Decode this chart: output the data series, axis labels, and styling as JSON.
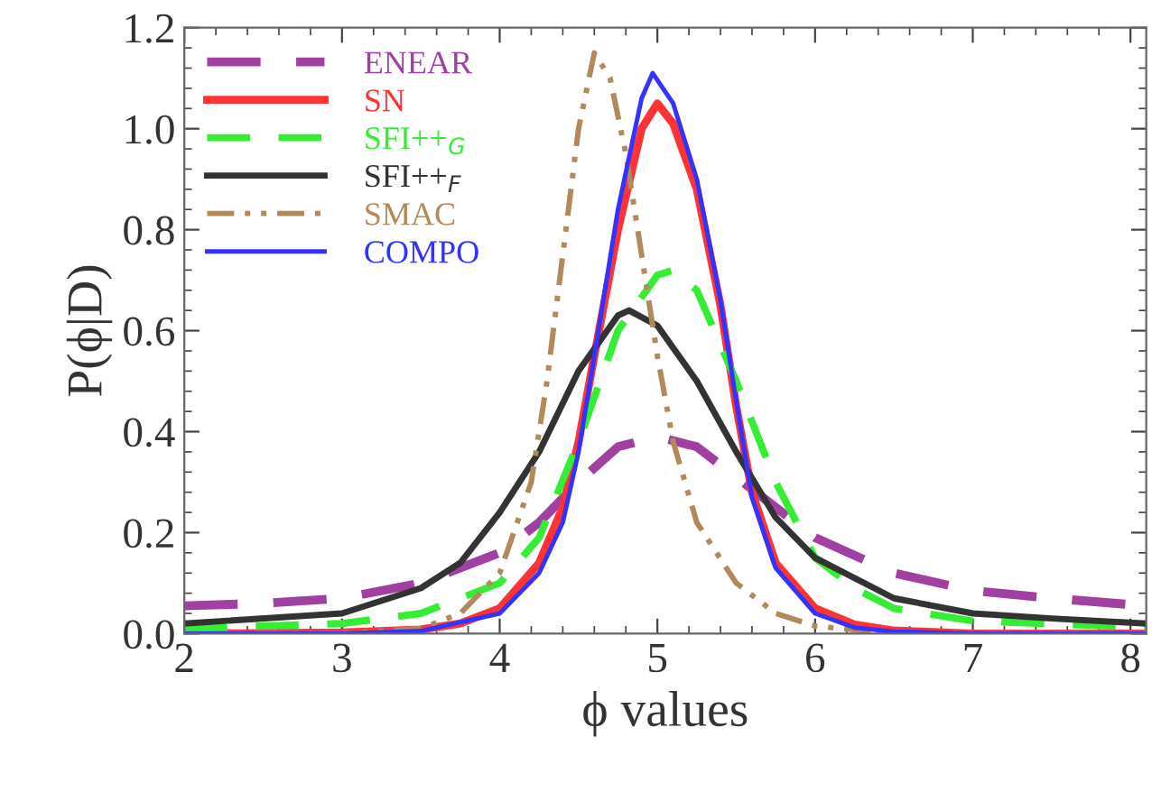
{
  "chart_data": {
    "type": "line",
    "xlabel": "ϕ values",
    "ylabel": "P(ϕ|D)",
    "xlim": [
      2,
      8.1
    ],
    "ylim": [
      0,
      1.2
    ],
    "xticks": [
      2,
      3,
      4,
      5,
      6,
      7,
      8
    ],
    "yticks": [
      {
        "value": 0,
        "label": "0.0"
      },
      0.2,
      0.4,
      0.6,
      0.8,
      {
        "value": 1,
        "label": "1.0"
      },
      1.2
    ],
    "grid": false,
    "legend": "top left",
    "marker": "none",
    "series": [
      {
        "name": "ENEAR",
        "color": "#a040a0",
        "line_style": "dashed",
        "x": [
          2,
          2.5,
          3,
          3.5,
          4,
          4.25,
          4.5,
          4.75,
          5,
          5.25,
          5.5,
          5.75,
          6,
          6.5,
          7,
          7.5,
          8.1
        ],
        "values": [
          0.055,
          0.06,
          0.07,
          0.1,
          0.16,
          0.22,
          0.3,
          0.37,
          0.39,
          0.37,
          0.31,
          0.25,
          0.19,
          0.12,
          0.085,
          0.07,
          0.055
        ]
      },
      {
        "name": "SN",
        "color": "#ff3333",
        "line_style": "solid",
        "x": [
          2,
          3,
          3.5,
          3.75,
          4,
          4.25,
          4.4,
          4.5,
          4.6,
          4.75,
          4.9,
          5,
          5.1,
          5.25,
          5.4,
          5.5,
          5.6,
          5.75,
          6,
          6.25,
          6.5,
          7,
          8.1
        ],
        "values": [
          0,
          0.002,
          0.008,
          0.02,
          0.05,
          0.14,
          0.25,
          0.38,
          0.55,
          0.8,
          1.0,
          1.05,
          1.01,
          0.88,
          0.65,
          0.45,
          0.28,
          0.14,
          0.05,
          0.018,
          0.006,
          0,
          0
        ]
      },
      {
        "name": "SFI++$_{G}$",
        "color": "#33ee33",
        "line_style": "dashed",
        "x": [
          2,
          3,
          3.5,
          4,
          4.25,
          4.5,
          4.75,
          5,
          5.1,
          5.25,
          5.5,
          5.75,
          6,
          6.25,
          6.5,
          7,
          8.1
        ],
        "values": [
          0.01,
          0.02,
          0.04,
          0.1,
          0.19,
          0.38,
          0.6,
          0.71,
          0.72,
          0.68,
          0.5,
          0.3,
          0.15,
          0.09,
          0.05,
          0.025,
          0.012
        ]
      },
      {
        "name": "SFI++$_{F}$",
        "color": "#333333",
        "line_style": "solid",
        "x": [
          2,
          3,
          3.5,
          3.75,
          4,
          4.25,
          4.5,
          4.75,
          4.82,
          5,
          5.25,
          5.5,
          5.75,
          6,
          6.5,
          7,
          7.5,
          8.1
        ],
        "values": [
          0.02,
          0.04,
          0.09,
          0.14,
          0.24,
          0.36,
          0.52,
          0.63,
          0.64,
          0.61,
          0.5,
          0.36,
          0.23,
          0.15,
          0.07,
          0.04,
          0.03,
          0.02
        ]
      },
      {
        "name": "SMAC",
        "color": "#b08a5a",
        "line_style": "dashdot",
        "x": [
          2,
          3,
          3.5,
          3.75,
          4,
          4.2,
          4.3,
          4.4,
          4.5,
          4.6,
          4.7,
          4.8,
          4.9,
          5,
          5.1,
          5.25,
          5.5,
          5.75,
          6,
          6.5,
          8.1
        ],
        "values": [
          0,
          0,
          0.01,
          0.04,
          0.12,
          0.3,
          0.5,
          0.75,
          1.0,
          1.15,
          1.1,
          0.95,
          0.75,
          0.55,
          0.38,
          0.22,
          0.1,
          0.04,
          0.015,
          0,
          0
        ]
      },
      {
        "name": "COMPO",
        "color": "#3333ff",
        "line_style": "solid",
        "x": [
          2,
          3,
          3.5,
          4,
          4.25,
          4.4,
          4.5,
          4.6,
          4.75,
          4.9,
          4.97,
          5.1,
          5.25,
          5.4,
          5.5,
          5.6,
          5.75,
          6,
          6.25,
          6.5,
          7,
          8.1
        ],
        "values": [
          0,
          0,
          0.005,
          0.04,
          0.12,
          0.22,
          0.36,
          0.55,
          0.84,
          1.06,
          1.11,
          1.05,
          0.9,
          0.66,
          0.46,
          0.27,
          0.13,
          0.04,
          0.012,
          0.004,
          0,
          0
        ]
      }
    ]
  }
}
